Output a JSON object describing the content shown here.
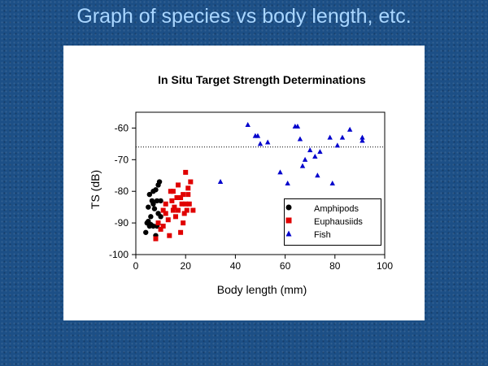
{
  "slide": {
    "title": "Graph of species vs body length, etc."
  },
  "chart_data": {
    "type": "scatter",
    "title": "In Situ Target Strength Determinations",
    "xlabel": "Body length (mm)",
    "ylabel": "TS (dB)",
    "xlim": [
      0,
      100
    ],
    "ylim": [
      -100,
      -55
    ],
    "xticks": [
      0,
      20,
      40,
      60,
      80,
      100
    ],
    "yticks": [
      -60,
      -70,
      -80,
      -90,
      -100
    ],
    "reference_line": {
      "y": -66,
      "style": "dotted"
    },
    "legend_position": "lower-right",
    "grid": false,
    "series": [
      {
        "name": "Amphipods",
        "marker": "circle",
        "color": "#000000",
        "points": [
          [
            4,
            -93
          ],
          [
            4.5,
            -90
          ],
          [
            5,
            -89.5
          ],
          [
            5.5,
            -91
          ],
          [
            6,
            -90.5
          ],
          [
            5,
            -85
          ],
          [
            5.5,
            -81
          ],
          [
            6.5,
            -83
          ],
          [
            7,
            -84
          ],
          [
            8,
            -79.5
          ],
          [
            8.5,
            -83
          ],
          [
            9,
            -78
          ],
          [
            9.5,
            -77
          ],
          [
            10,
            -83
          ],
          [
            7.5,
            -85.5
          ],
          [
            9,
            -87
          ],
          [
            7,
            -91
          ],
          [
            8,
            -94
          ],
          [
            6,
            -88
          ],
          [
            10,
            -88
          ],
          [
            8.5,
            -91
          ],
          [
            7,
            -80
          ]
        ]
      },
      {
        "name": "Euphausiids",
        "marker": "square",
        "color": "#e00000",
        "points": [
          [
            8,
            -95
          ],
          [
            9,
            -90
          ],
          [
            10,
            -92
          ],
          [
            11,
            -91
          ],
          [
            12,
            -87
          ],
          [
            13,
            -89
          ],
          [
            13.5,
            -94
          ],
          [
            14,
            -80
          ],
          [
            14.5,
            -83
          ],
          [
            15,
            -86
          ],
          [
            15.5,
            -85
          ],
          [
            16,
            -88
          ],
          [
            16.5,
            -82
          ],
          [
            17,
            -86
          ],
          [
            18,
            -82
          ],
          [
            18,
            -93
          ],
          [
            19,
            -81
          ],
          [
            19.5,
            -87
          ],
          [
            20,
            -74
          ],
          [
            20,
            -84
          ],
          [
            20.5,
            -86
          ],
          [
            21,
            -81
          ],
          [
            21.5,
            -84
          ],
          [
            22,
            -77
          ],
          [
            23,
            -86
          ],
          [
            19,
            -90
          ],
          [
            15,
            -80
          ],
          [
            17,
            -78
          ],
          [
            12,
            -84
          ],
          [
            11,
            -86
          ],
          [
            18.5,
            -84
          ],
          [
            21,
            -79
          ]
        ]
      },
      {
        "name": "Fish",
        "marker": "triangle",
        "color": "#0000cc",
        "points": [
          [
            34,
            -77
          ],
          [
            45,
            -59
          ],
          [
            48,
            -62.5
          ],
          [
            49,
            -62.5
          ],
          [
            50,
            -65
          ],
          [
            53,
            -64.5
          ],
          [
            58,
            -74
          ],
          [
            61,
            -77.5
          ],
          [
            64,
            -59.5
          ],
          [
            65,
            -59.5
          ],
          [
            66,
            -63.5
          ],
          [
            67,
            -72
          ],
          [
            68,
            -70
          ],
          [
            70,
            -67
          ],
          [
            72,
            -69
          ],
          [
            73,
            -75
          ],
          [
            74,
            -67.5
          ],
          [
            78,
            -63
          ],
          [
            79,
            -77.5
          ],
          [
            81,
            -65.5
          ],
          [
            83,
            -63
          ],
          [
            86,
            -60.5
          ],
          [
            91,
            -63
          ],
          [
            91,
            -64
          ]
        ]
      }
    ]
  }
}
